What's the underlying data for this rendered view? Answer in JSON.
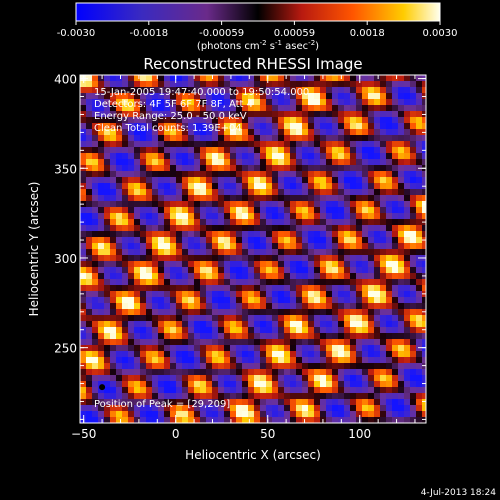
{
  "colorbar": {
    "ticks": [
      "-0.0030",
      "-0.0018",
      "-0.00059",
      "0.00059",
      "0.0018",
      "0.0030"
    ],
    "unit_prefix": "(photons cm",
    "unit_exp1": "-2",
    "unit_mid": " s",
    "unit_exp2": "-1",
    "unit_mid2": " asec",
    "unit_exp3": "-2",
    "unit_suffix": ")",
    "colors": [
      "#0000ff",
      "#4a2aa8",
      "#6a2a8a",
      "#000000",
      "#b81a10",
      "#ff5500",
      "#ffcc00",
      "#ffffdd"
    ]
  },
  "chart_data": {
    "type": "heatmap",
    "title": "Reconstructed RHESSI Image",
    "xlabel": "Heliocentric X (arcsec)",
    "ylabel": "Heliocentric Y (arcsec)",
    "xlim": [
      -52,
      136
    ],
    "ylim": [
      208,
      402
    ],
    "x_ticks": [
      -50,
      0,
      50,
      100
    ],
    "y_ticks": [
      250,
      300,
      350,
      400
    ],
    "colormap_range": [
      -0.003,
      0.003
    ],
    "peak": [
      29,
      209
    ],
    "annotations": [
      "15-Jan-2005 19:47:40.000 to 19:50:54.000",
      "Detectors: 4F 5F 6F 7F 8F, Att 4",
      "Energy Range: 25.0 - 50.0 keV",
      "Clean    Total counts: 1.39E+04"
    ],
    "peak_label": "Position of Peak = [29,209]"
  },
  "footer": {
    "timestamp": "4-Jul-2013 18:24"
  }
}
